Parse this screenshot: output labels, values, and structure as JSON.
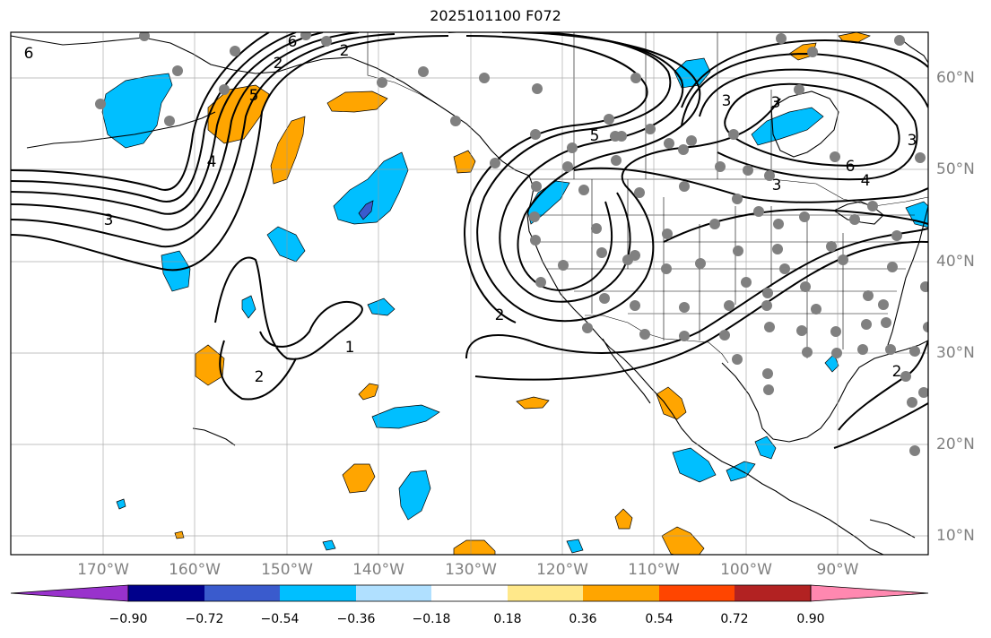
{
  "title": "2025101100 F072",
  "map": {
    "projection": "cylindrical",
    "lon_range": [
      -180,
      -80
    ],
    "lat_range": [
      8,
      65
    ],
    "lon_labels": [
      "170°W",
      "160°W",
      "150°W",
      "140°W",
      "130°W",
      "120°W",
      "110°W",
      "100°W",
      "90°W"
    ],
    "lat_labels": [
      "60°N",
      "50°N",
      "40°N",
      "30°N",
      "20°N",
      "10°N"
    ],
    "grid": true,
    "contour_labels": [
      "6",
      "2",
      "4",
      "3",
      "5",
      "2",
      "6",
      "5",
      "3",
      "2",
      "2",
      "1",
      "3",
      "3",
      "6",
      "4",
      "2",
      "3"
    ],
    "station_marker_color": "#808080",
    "contour_color": "#000000"
  },
  "colorbar": {
    "labels": [
      "−0.90",
      "−0.72",
      "−0.54",
      "−0.36",
      "−0.18",
      "0.18",
      "0.36",
      "0.54",
      "0.72",
      "0.90"
    ],
    "colors": [
      "#9932cc",
      "#00008b",
      "#3a5bcd",
      "#00bfff",
      "#b0e0ff",
      "#ffffff",
      "#ffe88a",
      "#ffa500",
      "#ff4500",
      "#b22222",
      "#ff88b0"
    ],
    "extend": "both"
  }
}
